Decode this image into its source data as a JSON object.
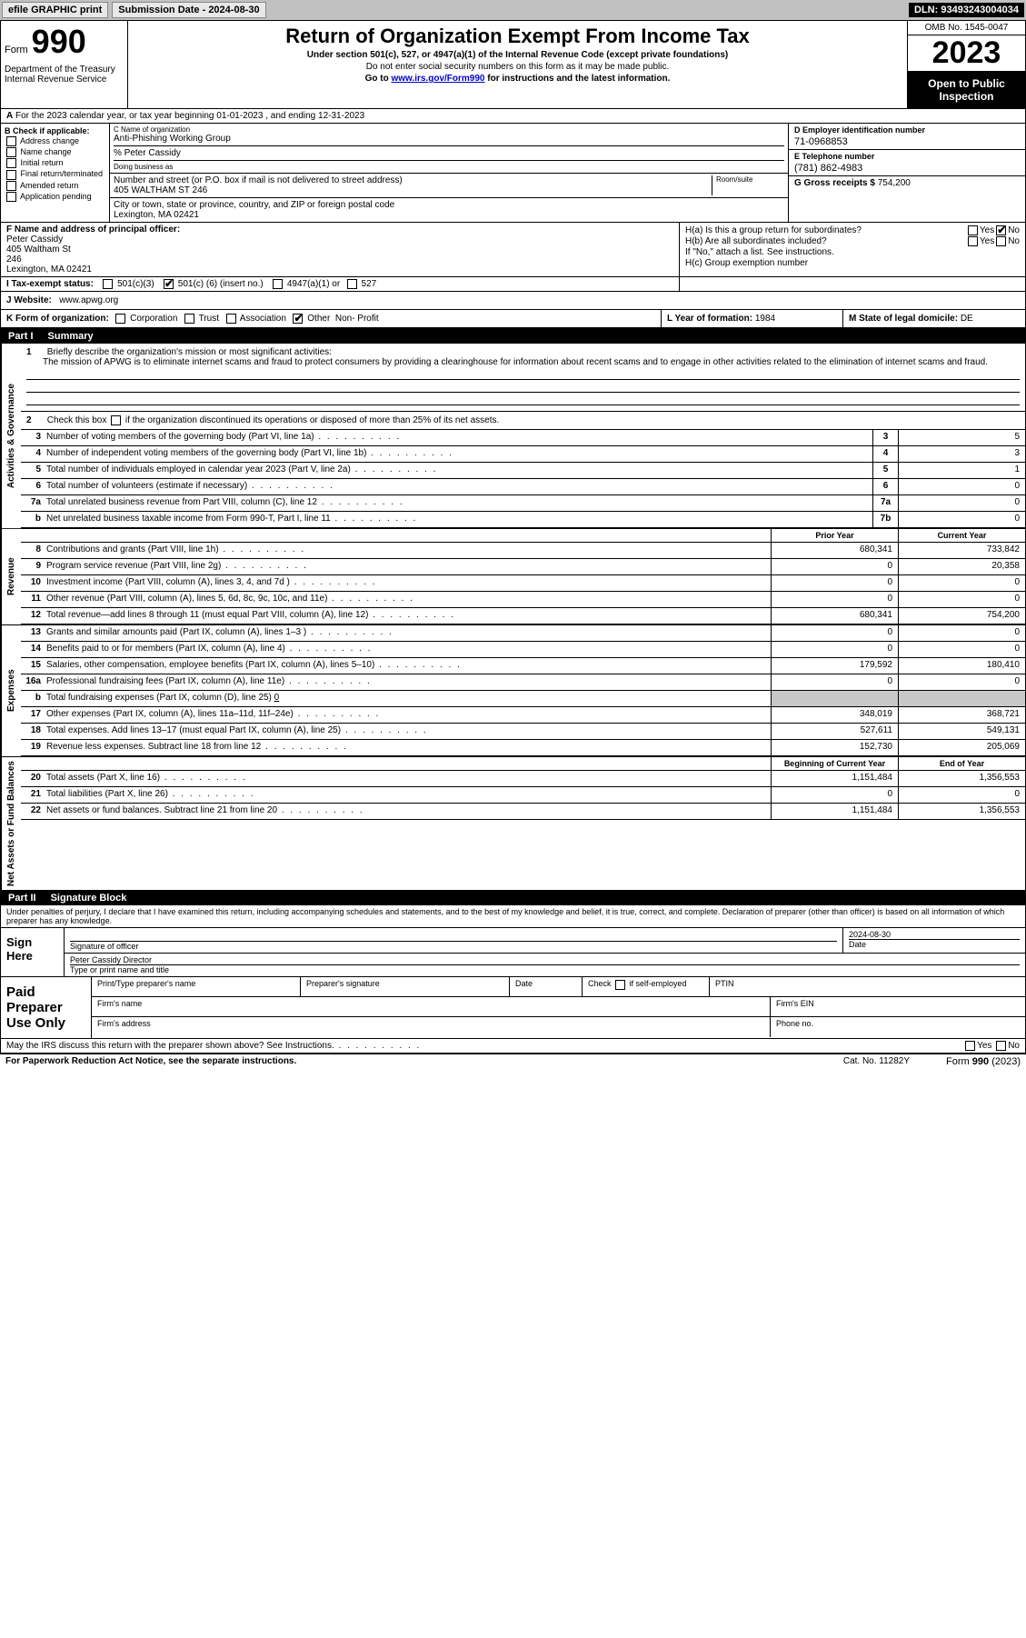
{
  "topbar": {
    "efile": "efile GRAPHIC print",
    "submission_label": "Submission Date - 2024-08-30",
    "dln": "DLN: 93493243004034"
  },
  "header": {
    "form_word": "Form",
    "form_num": "990",
    "dept": "Department of the Treasury\nInternal Revenue Service",
    "title": "Return of Organization Exempt From Income Tax",
    "sub1": "Under section 501(c), 527, or 4947(a)(1) of the Internal Revenue Code (except private foundations)",
    "sub2": "Do not enter social security numbers on this form as it may be made public.",
    "sub3_pre": "Go to ",
    "sub3_link": "www.irs.gov/Form990",
    "sub3_post": " for instructions and the latest information.",
    "omb": "OMB No. 1545-0047",
    "year": "2023",
    "open_public": "Open to Public Inspection"
  },
  "row_a": "For the 2023 calendar year, or tax year beginning 01-01-2023   , and ending 12-31-2023",
  "section_b": {
    "label": "B Check if applicable:",
    "items": [
      "Address change",
      "Name change",
      "Initial return",
      "Final return/terminated",
      "Amended return",
      "Application pending"
    ]
  },
  "section_c": {
    "name_label": "C Name of organization",
    "org_name": "Anti-Phishing Working Group",
    "care_of": "% Peter Cassidy",
    "dba_label": "Doing business as",
    "addr_label": "Number and street (or P.O. box if mail is not delivered to street address)",
    "room_label": "Room/suite",
    "address": "405 WALTHAM ST 246",
    "city_label": "City or town, state or province, country, and ZIP or foreign postal code",
    "city": "Lexington, MA  02421"
  },
  "section_d": {
    "ein_label": "D Employer identification number",
    "ein": "71-0968853",
    "tel_label": "E Telephone number",
    "tel": "(781) 862-4983",
    "gross_label": "G Gross receipts $",
    "gross": "754,200"
  },
  "section_f": {
    "label": "F  Name and address of principal officer:",
    "name": "Peter Cassidy",
    "addr1": "405 Waltham St",
    "addr2": "246",
    "city": "Lexington, MA  02421"
  },
  "section_h": {
    "ha": "H(a)  Is this a group return for subordinates?",
    "hb": "H(b)  Are all subordinates included?",
    "hb_note": "If \"No,\" attach a list. See instructions.",
    "hc": "H(c)  Group exemption number",
    "yes": "Yes",
    "no": "No"
  },
  "tax_exempt": {
    "label": "I  Tax-exempt status:",
    "opt1": "501(c)(3)",
    "opt2_pre": "501(c) (",
    "opt2_num": "6",
    "opt2_post": ") (insert no.)",
    "opt3": "4947(a)(1) or",
    "opt4": "527"
  },
  "website": {
    "label": "J  Website:",
    "value": "www.apwg.org"
  },
  "korg": {
    "k_label": "K Form of organization:",
    "opts": [
      "Corporation",
      "Trust",
      "Association",
      "Other"
    ],
    "other_val": "Non- Profit",
    "l_label": "L Year of formation:",
    "l_val": "1984",
    "m_label": "M State of legal domicile:",
    "m_val": "DE"
  },
  "part1": {
    "num": "Part I",
    "title": "Summary"
  },
  "mission": {
    "num": "1",
    "label": "Briefly describe the organization's mission or most significant activities:",
    "text": "The mission of APWG is to eliminate internet scams and fraud to protect consumers by providing a clearinghouse for information about recent scams and to engage in other activities related to the elimination of internet scams and fraud."
  },
  "line2": {
    "num": "2",
    "text": "Check this box          if the organization discontinued its operations or disposed of more than 25% of its net assets."
  },
  "governance_rows": [
    {
      "num": "3",
      "desc": "Number of voting members of the governing body (Part VI, line 1a)",
      "box": "3",
      "val": "5"
    },
    {
      "num": "4",
      "desc": "Number of independent voting members of the governing body (Part VI, line 1b)",
      "box": "4",
      "val": "3"
    },
    {
      "num": "5",
      "desc": "Total number of individuals employed in calendar year 2023 (Part V, line 2a)",
      "box": "5",
      "val": "1"
    },
    {
      "num": "6",
      "desc": "Total number of volunteers (estimate if necessary)",
      "box": "6",
      "val": "0"
    },
    {
      "num": "7a",
      "desc": "Total unrelated business revenue from Part VIII, column (C), line 12",
      "box": "7a",
      "val": "0"
    },
    {
      "num": "b",
      "desc": "Net unrelated business taxable income from Form 990-T, Part I, line 11",
      "box": "7b",
      "val": "0"
    }
  ],
  "col_heads": {
    "prior": "Prior Year",
    "current": "Current Year"
  },
  "revenue_rows": [
    {
      "num": "8",
      "desc": "Contributions and grants (Part VIII, line 1h)",
      "prior": "680,341",
      "current": "733,842"
    },
    {
      "num": "9",
      "desc": "Program service revenue (Part VIII, line 2g)",
      "prior": "0",
      "current": "20,358"
    },
    {
      "num": "10",
      "desc": "Investment income (Part VIII, column (A), lines 3, 4, and 7d )",
      "prior": "0",
      "current": "0"
    },
    {
      "num": "11",
      "desc": "Other revenue (Part VIII, column (A), lines 5, 6d, 8c, 9c, 10c, and 11e)",
      "prior": "0",
      "current": "0"
    },
    {
      "num": "12",
      "desc": "Total revenue—add lines 8 through 11 (must equal Part VIII, column (A), line 12)",
      "prior": "680,341",
      "current": "754,200"
    }
  ],
  "expense_rows": [
    {
      "num": "13",
      "desc": "Grants and similar amounts paid (Part IX, column (A), lines 1–3 )",
      "prior": "0",
      "current": "0"
    },
    {
      "num": "14",
      "desc": "Benefits paid to or for members (Part IX, column (A), line 4)",
      "prior": "0",
      "current": "0"
    },
    {
      "num": "15",
      "desc": "Salaries, other compensation, employee benefits (Part IX, column (A), lines 5–10)",
      "prior": "179,592",
      "current": "180,410"
    },
    {
      "num": "16a",
      "desc": "Professional fundraising fees (Part IX, column (A), line 11e)",
      "prior": "0",
      "current": "0"
    }
  ],
  "line16b": {
    "num": "b",
    "desc": "Total fundraising expenses (Part IX, column (D), line 25)",
    "val": "0"
  },
  "expense_rows2": [
    {
      "num": "17",
      "desc": "Other expenses (Part IX, column (A), lines 11a–11d, 11f–24e)",
      "prior": "348,019",
      "current": "368,721"
    },
    {
      "num": "18",
      "desc": "Total expenses. Add lines 13–17 (must equal Part IX, column (A), line 25)",
      "prior": "527,611",
      "current": "549,131"
    },
    {
      "num": "19",
      "desc": "Revenue less expenses. Subtract line 18 from line 12",
      "prior": "152,730",
      "current": "205,069"
    }
  ],
  "col_heads2": {
    "begin": "Beginning of Current Year",
    "end": "End of Year"
  },
  "net_rows": [
    {
      "num": "20",
      "desc": "Total assets (Part X, line 16)",
      "prior": "1,151,484",
      "current": "1,356,553"
    },
    {
      "num": "21",
      "desc": "Total liabilities (Part X, line 26)",
      "prior": "0",
      "current": "0"
    },
    {
      "num": "22",
      "desc": "Net assets or fund balances. Subtract line 21 from line 20",
      "prior": "1,151,484",
      "current": "1,356,553"
    }
  ],
  "part2": {
    "num": "Part II",
    "title": "Signature Block"
  },
  "perjury": "Under penalties of perjury, I declare that I have examined this return, including accompanying schedules and statements, and to the best of my knowledge and belief, it is true, correct, and complete. Declaration of preparer (other than officer) is based on all information of which preparer has any knowledge.",
  "sign": {
    "label": "Sign Here",
    "sig_label": "Signature of officer",
    "date_label": "Date",
    "date_val": "2024-08-30",
    "name_title": "Peter Cassidy  Director",
    "type_label": "Type or print name and title"
  },
  "preparer": {
    "label": "Paid Preparer Use Only",
    "name_label": "Print/Type preparer's name",
    "sig_label": "Preparer's signature",
    "date_label": "Date",
    "check_label": "Check          if self-employed",
    "ptin_label": "PTIN",
    "firm_name_label": "Firm's name",
    "firm_ein_label": "Firm's EIN",
    "firm_addr_label": "Firm's address",
    "phone_label": "Phone no."
  },
  "discuss": "May the IRS discuss this return with the preparer shown above? See Instructions.",
  "footer": {
    "paperwork": "For Paperwork Reduction Act Notice, see the separate instructions.",
    "cat": "Cat. No. 11282Y",
    "form": "Form 990 (2023)"
  },
  "vtabs": {
    "gov": "Activities & Governance",
    "rev": "Revenue",
    "exp": "Expenses",
    "net": "Net Assets or Fund Balances"
  }
}
